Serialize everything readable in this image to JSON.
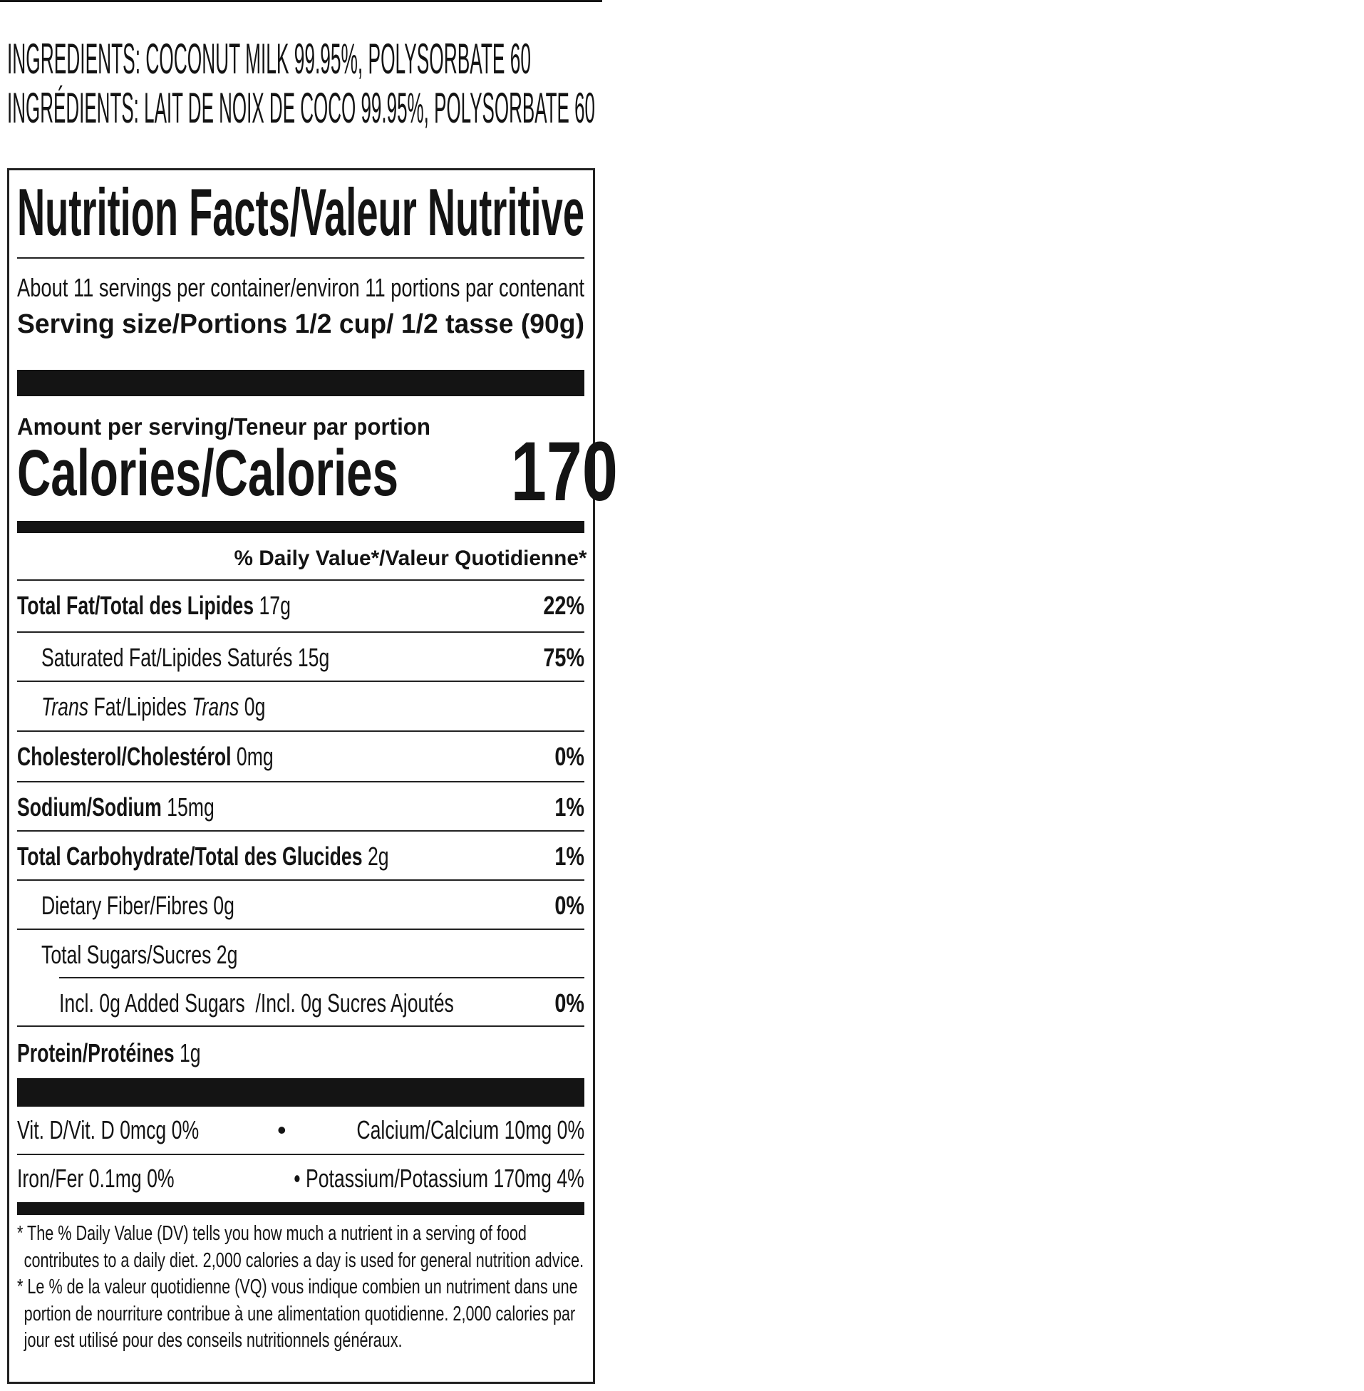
{
  "ingredients": {
    "en_label": "INGREDIENTS:",
    "en_text": " COCONUT MILK 99.95%, POLYSORBATE 60",
    "fr_label": "INGRÉDIENTS:",
    "fr_text": " LAIT DE NOIX DE COCO 99.95%, POLYSORBATE 60"
  },
  "label": {
    "title": "Nutrition Facts/Valeur Nutritive",
    "servings": "About 11 servings per container/environ 11 portions par contenant",
    "serving_size": "Serving size/Portions 1/2 cup/ 1/2 tasse (90g)",
    "amount_per_serving": "Amount per serving/Teneur par portion",
    "calories_label": "Calories/Calories",
    "calories_value": "170",
    "dv_header": "% Daily Value*/Valeur Quotidienne*",
    "nutrients": [
      {
        "name": "Total Fat/Total des Lipides",
        "amount": " 17g",
        "dv": "22%"
      },
      {
        "name": "Saturated Fat/Lipides Saturés 15g",
        "amount": "",
        "dv": "75%"
      },
      {
        "name_italic_1": "Trans",
        "name_mid": " Fat/Lipides ",
        "name_italic_2": "Trans",
        "amount": " 0g",
        "dv": ""
      },
      {
        "name": "Cholesterol/Cholestérol",
        "amount": " 0mg",
        "dv": "0%"
      },
      {
        "name": "Sodium/Sodium",
        "amount": " 15mg",
        "dv": "1%"
      },
      {
        "name": "Total Carbohydrate/Total des Glucides",
        "amount": " 2g",
        "dv": "1%"
      },
      {
        "name": "Dietary Fiber/Fibres 0g",
        "amount": "",
        "dv": "0%"
      },
      {
        "name": "Total Sugars/Sucres 2g",
        "amount": "",
        "dv": ""
      },
      {
        "name": "Incl. 0g Added Sugars  /Incl. 0g Sucres Ajoutés",
        "amount": "",
        "dv": "0%"
      },
      {
        "name": "Protein/Protéines",
        "amount": " 1g",
        "dv": ""
      }
    ],
    "vitamins": {
      "vit_d": "Vit. D/Vit. D 0mcg 0%",
      "bullet": "•",
      "calcium": "Calcium/Calcium 10mg 0%",
      "iron": "Iron/Fer 0.1mg 0%",
      "potassium": "• Potassium/Potassium 170mg 4%"
    },
    "footnotes": [
      "* The % Daily Value (DV) tells you how much a nutrient in a serving of food",
      "contributes to a daily diet. 2,000 calories a day is used for general nutrition advice.",
      "* Le % de la valeur quotidienne (VQ) vous indique combien un nutriment dans une",
      "portion de nourriture contribue à une alimentation quotidienne. 2,000 calories par",
      "jour est utilisé pour des conseils nutritionnels généraux."
    ]
  }
}
